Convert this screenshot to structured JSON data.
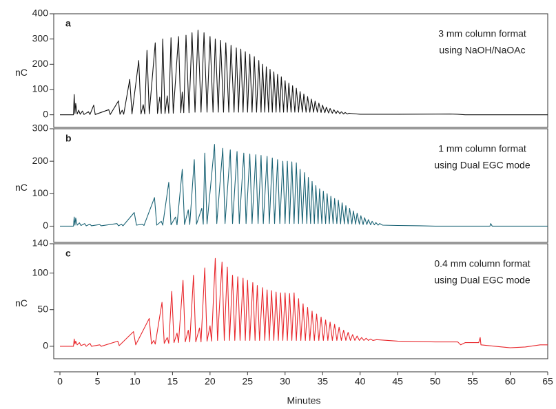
{
  "chart_data": [
    {
      "type": "line",
      "label": "a",
      "annotation": [
        "3 mm column format",
        "using NaOH/NaOAc"
      ],
      "ylabel": "nC",
      "ylim": [
        -50,
        400
      ],
      "yticks": [
        0,
        100,
        200,
        300,
        400
      ],
      "color": "#111111",
      "x": [
        0,
        1.8,
        1.9,
        2.0,
        2.1,
        2.3,
        2.5,
        2.7,
        3.0,
        3.2,
        3.8,
        4.0,
        4.5,
        4.7,
        6.5,
        6.7,
        7.8,
        8.0,
        8.3,
        8.5,
        9.3,
        9.6,
        10.5,
        10.8,
        11.1,
        11.3,
        11.6,
        11.9,
        12.7,
        13.0,
        13.3,
        13.5,
        13.7,
        14.0,
        14.3,
        14.5,
        14.8,
        15.1,
        15.8,
        16.1,
        16.3,
        16.5,
        16.8,
        17.2,
        17.6,
        18.0,
        18.4,
        18.8,
        19.2,
        19.6,
        20.0,
        20.4,
        20.7,
        21.1,
        21.4,
        21.8,
        22.1,
        22.5,
        22.8,
        23.2,
        23.5,
        23.8,
        24.1,
        24.4,
        24.7,
        25.0,
        25.3,
        25.6,
        25.9,
        26.2,
        26.5,
        26.8,
        27.0,
        27.3,
        27.5,
        27.8,
        28.0,
        28.3,
        28.5,
        28.8,
        29.0,
        29.3,
        29.5,
        29.8,
        30.0,
        30.3,
        30.5,
        30.8,
        31.0,
        31.3,
        31.5,
        31.8,
        32.0,
        32.3,
        32.5,
        32.8,
        33.0,
        33.3,
        33.5,
        33.8,
        34.0,
        34.3,
        34.5,
        34.8,
        35.0,
        35.3,
        35.5,
        35.8,
        36.0,
        36.3,
        36.5,
        36.8,
        37.0,
        37.3,
        37.5,
        37.8,
        38.0,
        38.3,
        38.5,
        40,
        45,
        52,
        53,
        54,
        65
      ],
      "values": [
        0,
        0,
        80,
        5,
        45,
        3,
        18,
        2,
        15,
        1,
        12,
        1,
        38,
        1,
        20,
        1,
        55,
        2,
        18,
        2,
        140,
        3,
        215,
        3,
        40,
        3,
        255,
        4,
        285,
        5,
        70,
        5,
        300,
        5,
        75,
        6,
        305,
        6,
        310,
        8,
        90,
        8,
        315,
        8,
        325,
        10,
        335,
        10,
        325,
        10,
        310,
        10,
        300,
        10,
        295,
        10,
        285,
        10,
        275,
        10,
        265,
        10,
        260,
        10,
        250,
        10,
        240,
        10,
        230,
        10,
        215,
        10,
        200,
        10,
        190,
        10,
        180,
        10,
        170,
        10,
        160,
        10,
        150,
        10,
        135,
        10,
        125,
        10,
        115,
        10,
        105,
        10,
        92,
        10,
        82,
        10,
        72,
        10,
        62,
        10,
        54,
        10,
        46,
        9,
        38,
        8,
        30,
        7,
        25,
        6,
        20,
        5,
        16,
        4,
        12,
        3,
        9,
        3,
        6,
        2,
        2,
        3,
        2,
        0,
        0
      ]
    },
    {
      "type": "line",
      "label": "b",
      "annotation": [
        "1 mm column format",
        "using Dual EGC mode"
      ],
      "ylabel": "nC",
      "ylim": [
        -50,
        300
      ],
      "yticks": [
        0,
        100,
        200,
        300
      ],
      "color": "#1a6375",
      "x": [
        0,
        1.8,
        1.9,
        2.0,
        2.1,
        2.3,
        2.6,
        2.8,
        3.3,
        3.5,
        4.0,
        4.2,
        5.3,
        5.5,
        7.6,
        7.8,
        8.2,
        8.4,
        9.9,
        10.2,
        11.0,
        11.2,
        12.6,
        12.9,
        13.5,
        13.7,
        14.5,
        14.8,
        15.4,
        15.6,
        16.3,
        16.6,
        17.1,
        17.3,
        17.9,
        18.2,
        18.9,
        19.1,
        19.3,
        19.6,
        20.6,
        20.9,
        21.7,
        22.0,
        22.7,
        23.0,
        23.6,
        23.9,
        24.5,
        24.8,
        25.3,
        25.6,
        26.1,
        26.4,
        26.8,
        27.1,
        27.6,
        27.9,
        28.3,
        28.6,
        29.0,
        29.3,
        29.7,
        30.0,
        30.3,
        30.6,
        30.9,
        31.2,
        31.5,
        31.8,
        32.0,
        32.3,
        32.6,
        32.9,
        33.1,
        33.4,
        33.6,
        33.9,
        34.1,
        34.4,
        34.6,
        34.9,
        35.1,
        35.4,
        35.6,
        35.9,
        36.1,
        36.4,
        36.6,
        36.9,
        37.1,
        37.4,
        37.6,
        37.9,
        38.1,
        38.4,
        38.6,
        38.9,
        39.1,
        39.4,
        39.6,
        39.9,
        40.1,
        40.4,
        40.6,
        40.9,
        41.1,
        41.4,
        41.6,
        41.9,
        42.1,
        42.4,
        42.6,
        43,
        45,
        48,
        50,
        55,
        57.3,
        57.4,
        57.6,
        65
      ],
      "values": [
        0,
        0,
        28,
        3,
        25,
        3,
        10,
        2,
        8,
        1,
        6,
        1,
        5,
        1,
        8,
        1,
        6,
        1,
        42,
        3,
        6,
        2,
        88,
        3,
        15,
        3,
        135,
        4,
        28,
        4,
        175,
        5,
        50,
        5,
        205,
        6,
        55,
        6,
        225,
        7,
        252,
        8,
        240,
        8,
        235,
        8,
        230,
        8,
        225,
        8,
        222,
        8,
        220,
        8,
        218,
        8,
        215,
        8,
        210,
        8,
        205,
        8,
        200,
        8,
        200,
        8,
        198,
        8,
        195,
        8,
        175,
        8,
        165,
        8,
        150,
        8,
        138,
        8,
        125,
        8,
        115,
        8,
        108,
        8,
        100,
        8,
        92,
        8,
        85,
        8,
        80,
        7,
        72,
        7,
        63,
        7,
        55,
        7,
        47,
        6,
        40,
        6,
        32,
        5,
        26,
        5,
        20,
        4,
        15,
        4,
        11,
        3,
        8,
        3,
        2,
        1,
        0,
        0,
        0,
        8,
        0,
        0
      ]
    },
    {
      "type": "line",
      "label": "c",
      "annotation": [
        "0.4 mm column format",
        "using Dual EGC mode"
      ],
      "ylabel": "nC",
      "ylim": [
        -17,
        140
      ],
      "yticks": [
        0,
        50,
        100,
        140
      ],
      "color": "#e8262b",
      "xlim": [
        0,
        65
      ],
      "xticks": [
        0,
        5,
        10,
        15,
        20,
        25,
        30,
        35,
        40,
        45,
        50,
        55,
        60,
        65
      ],
      "xlabel": "Minutes",
      "x": [
        0,
        1.8,
        1.9,
        2.0,
        2.1,
        2.3,
        2.6,
        2.8,
        3.3,
        3.5,
        4.0,
        4.2,
        5.3,
        5.5,
        7.7,
        7.9,
        9.8,
        10.1,
        11.9,
        12.2,
        12.5,
        12.7,
        13.6,
        13.9,
        14.3,
        14.5,
        14.9,
        15.2,
        15.6,
        15.8,
        16.4,
        16.7,
        17.1,
        17.3,
        17.8,
        18.1,
        18.6,
        18.8,
        19.3,
        19.6,
        20.0,
        20.2,
        20.7,
        21.0,
        21.6,
        21.9,
        22.3,
        22.6,
        23.0,
        23.3,
        23.7,
        24.0,
        24.4,
        24.7,
        25.0,
        25.3,
        25.7,
        26.0,
        26.3,
        26.6,
        27.0,
        27.3,
        27.6,
        27.9,
        28.2,
        28.5,
        28.8,
        29.1,
        29.4,
        29.7,
        30.0,
        30.3,
        30.6,
        30.9,
        31.2,
        31.5,
        31.8,
        32.1,
        32.4,
        32.7,
        33.0,
        33.3,
        33.6,
        33.9,
        34.2,
        34.5,
        34.8,
        35.1,
        35.4,
        35.7,
        36.0,
        36.3,
        36.6,
        36.9,
        37.2,
        37.5,
        37.8,
        38.1,
        38.4,
        38.7,
        39.0,
        39.3,
        39.6,
        39.9,
        40.2,
        40.5,
        40.8,
        41.1,
        41.4,
        41.7,
        42.2,
        45,
        50,
        53,
        53.4,
        54,
        55.8,
        56.0,
        56.1,
        58,
        60,
        62,
        64,
        65
      ],
      "values": [
        0,
        0,
        10,
        3,
        7,
        2,
        5,
        1,
        3,
        0,
        4,
        0,
        2,
        0,
        7,
        1,
        20,
        2,
        38,
        3,
        8,
        3,
        60,
        4,
        12,
        4,
        75,
        5,
        18,
        5,
        90,
        6,
        22,
        6,
        97,
        6,
        25,
        6,
        107,
        7,
        28,
        7,
        120,
        8,
        115,
        8,
        108,
        8,
        97,
        8,
        95,
        8,
        93,
        8,
        90,
        8,
        87,
        8,
        83,
        8,
        80,
        8,
        77,
        8,
        76,
        8,
        74,
        8,
        73,
        8,
        73,
        8,
        72,
        8,
        73,
        8,
        65,
        8,
        58,
        8,
        53,
        8,
        48,
        8,
        44,
        8,
        40,
        8,
        36,
        8,
        33,
        8,
        30,
        8,
        26,
        8,
        22,
        8,
        19,
        8,
        16,
        8,
        14,
        8,
        12,
        8,
        11,
        8,
        10,
        8,
        9,
        7,
        6,
        6,
        2,
        5,
        5,
        12,
        2,
        0,
        -2,
        -1,
        2,
        2
      ]
    }
  ]
}
